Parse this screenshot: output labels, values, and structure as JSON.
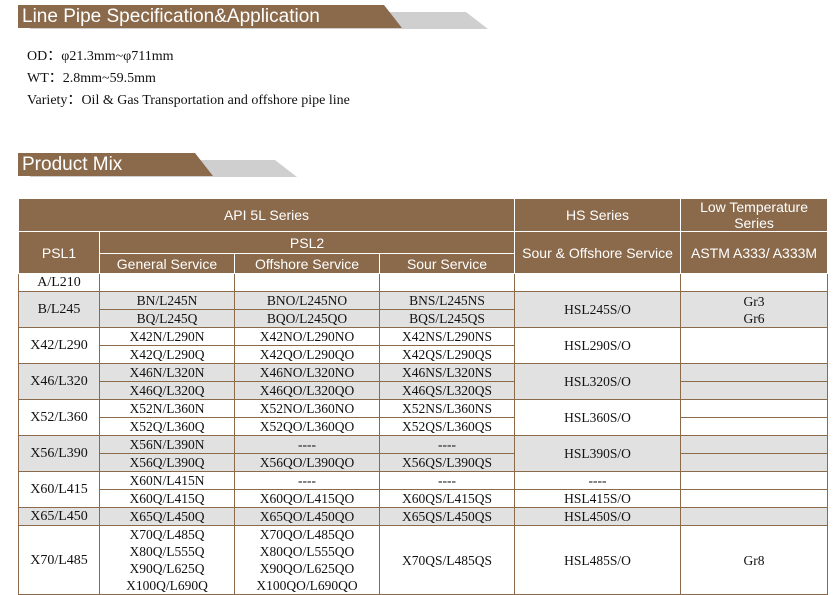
{
  "section1": {
    "title": "Line Pipe Specification&Application"
  },
  "spec": [
    {
      "label": "OD：",
      "value": "φ21.3mm~φ711mm"
    },
    {
      "label": "WT：",
      "value": "2.8mm~59.5mm"
    },
    {
      "label": "Variety：",
      "value": "Oil & Gas Transportation and offshore pipe line"
    }
  ],
  "section2": {
    "title": "Product Mix"
  },
  "colors": {
    "brand": "#8a6a4b",
    "shade": "#e1e1e1"
  },
  "table": {
    "header": {
      "api": "API 5L Series",
      "hs": "HS Series",
      "lt": "Low Temperature Series",
      "psl1": "PSL1",
      "psl2": "PSL2",
      "sour_offshore": "Sour & Offshore Service",
      "astm": "ASTM A333/ A333M",
      "general": "General Service",
      "offshore": "Offshore Service",
      "sour": "Sour Service"
    },
    "groups": [
      {
        "psl1": "A/L210",
        "shaded": false,
        "rows": [
          {
            "gen": "",
            "off": "",
            "sour": ""
          }
        ],
        "hs": "",
        "lt": ""
      },
      {
        "psl1": "B/L245",
        "shaded": true,
        "rows": [
          {
            "gen": "BN/L245N",
            "off": "BNO/L245NO",
            "sour": "BNS/L245NS"
          },
          {
            "gen": "BQ/L245Q",
            "off": "BQO/L245QO",
            "sour": "BQS/L245QS"
          }
        ],
        "hs": "HSL245S/O",
        "lt": "Gr3\nGr6"
      },
      {
        "psl1": "X42/L290",
        "shaded": false,
        "rows": [
          {
            "gen": "X42N/L290N",
            "off": "X42NO/L290NO",
            "sour": "X42NS/L290NS"
          },
          {
            "gen": "X42Q/L290Q",
            "off": "X42QO/L290QO",
            "sour": "X42QS/L290QS"
          }
        ],
        "hs": "HSL290S/O",
        "lt": ""
      },
      {
        "psl1": "X46/L320",
        "shaded": true,
        "rows": [
          {
            "gen": "X46N/L320N",
            "off": "X46NO/L320NO",
            "sour": "X46NS/L320NS"
          },
          {
            "gen": "X46Q/L320Q",
            "off": "X46QO/L320QO",
            "sour": "X46QS/L320QS"
          }
        ],
        "hs": "HSL320S/O",
        "lt_rows": [
          "",
          ""
        ]
      },
      {
        "psl1": "X52/L360",
        "shaded": false,
        "rows": [
          {
            "gen": "X52N/L360N",
            "off": "X52NO/L360NO",
            "sour": "X52NS/L360NS"
          },
          {
            "gen": "X52Q/L360Q",
            "off": "X52QO/L360QO",
            "sour": "X52QS/L360QS"
          }
        ],
        "hs": "HSL360S/O",
        "lt_rows": [
          "",
          ""
        ]
      },
      {
        "psl1": "X56/L390",
        "shaded": true,
        "rows": [
          {
            "gen": "X56N/L390N",
            "off": "----",
            "sour": "----"
          },
          {
            "gen": "X56Q/L390Q",
            "off": "X56QO/L390QO",
            "sour": "X56QS/L390QS"
          }
        ],
        "hs": "HSL390S/O",
        "lt_rows": [
          "",
          ""
        ]
      },
      {
        "psl1": "X60/L415",
        "shaded": false,
        "rows": [
          {
            "gen": "X60N/L415N",
            "off": "----",
            "sour": "----"
          },
          {
            "gen": "X60Q/L415Q",
            "off": "X60QO/L415QO",
            "sour": "X60QS/L415QS"
          }
        ],
        "hs_rows": [
          "----",
          "HSL415S/O"
        ],
        "lt_rows": [
          "",
          ""
        ]
      },
      {
        "psl1": "X65/L450",
        "shaded": true,
        "rows": [
          {
            "gen": "X65Q/L450Q",
            "off": "X65QO/L450QO",
            "sour": "X65QS/L450QS"
          }
        ],
        "hs": "HSL450S/O",
        "lt": ""
      },
      {
        "psl1": "X70/L485",
        "shaded": false,
        "rows": [
          {
            "gen": "X70Q/L485Q\nX80Q/L555Q\nX90Q/L625Q\nX100Q/L690Q",
            "off": "X70QO/L485QO\nX80QO/L555QO\nX90QO/L625QO\nX100QO/L690QO",
            "sour": "X70QS/L485QS"
          }
        ],
        "hs": "HSL485S/O",
        "lt": "Gr8"
      }
    ]
  }
}
